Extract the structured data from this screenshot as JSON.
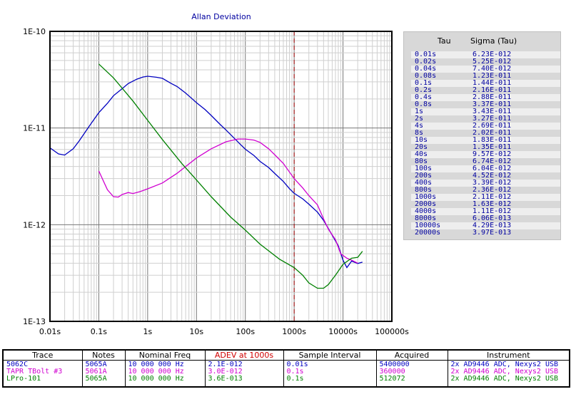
{
  "chart_data": {
    "type": "line",
    "title": "Allan Deviation",
    "x_scale": "log",
    "y_scale": "log",
    "xlim": [
      0.01,
      100000
    ],
    "ylim": [
      1e-13,
      1e-10
    ],
    "x_tick_labels": [
      "0.01s",
      "0.1s",
      "1s",
      "10s",
      "100s",
      "1000s",
      "10000s",
      "100000s"
    ],
    "y_tick_labels": [
      "1E-13",
      "1E-12",
      "1E-11",
      "1E-10"
    ],
    "grid": true,
    "marker_line": {
      "x": 1000,
      "color": "#a00000",
      "style": "dashed"
    },
    "series": [
      {
        "name": "5062C",
        "color": "#0000c0",
        "points": [
          [
            0.01,
            6.23e-12
          ],
          [
            0.015,
            5.4e-12
          ],
          [
            0.02,
            5.25e-12
          ],
          [
            0.03,
            6.1e-12
          ],
          [
            0.04,
            7.4e-12
          ],
          [
            0.06,
            1e-11
          ],
          [
            0.08,
            1.23e-11
          ],
          [
            0.1,
            1.44e-11
          ],
          [
            0.15,
            1.8e-11
          ],
          [
            0.2,
            2.16e-11
          ],
          [
            0.3,
            2.55e-11
          ],
          [
            0.4,
            2.88e-11
          ],
          [
            0.6,
            3.2e-11
          ],
          [
            0.8,
            3.37e-11
          ],
          [
            1,
            3.43e-11
          ],
          [
            1.5,
            3.35e-11
          ],
          [
            2,
            3.27e-11
          ],
          [
            3,
            2.9e-11
          ],
          [
            4,
            2.69e-11
          ],
          [
            6,
            2.3e-11
          ],
          [
            8,
            2.02e-11
          ],
          [
            10,
            1.83e-11
          ],
          [
            15,
            1.55e-11
          ],
          [
            20,
            1.35e-11
          ],
          [
            30,
            1.1e-11
          ],
          [
            40,
            9.57e-12
          ],
          [
            60,
            7.8e-12
          ],
          [
            80,
            6.74e-12
          ],
          [
            100,
            6.04e-12
          ],
          [
            150,
            5.2e-12
          ],
          [
            200,
            4.52e-12
          ],
          [
            300,
            3.9e-12
          ],
          [
            400,
            3.39e-12
          ],
          [
            600,
            2.8e-12
          ],
          [
            800,
            2.36e-12
          ],
          [
            1000,
            2.11e-12
          ],
          [
            1500,
            1.85e-12
          ],
          [
            2000,
            1.63e-12
          ],
          [
            3000,
            1.35e-12
          ],
          [
            4000,
            1.11e-12
          ],
          [
            6000,
            7.8e-13
          ],
          [
            8000,
            6.06e-13
          ],
          [
            10000,
            4.29e-13
          ],
          [
            12000,
            3.6e-13
          ],
          [
            15000,
            4.2e-13
          ],
          [
            20000,
            3.97e-13
          ],
          [
            25000,
            4.1e-13
          ]
        ]
      },
      {
        "name": "TAPR TBolt #3",
        "color": "#d000d0",
        "points": [
          [
            0.1,
            3.6e-12
          ],
          [
            0.15,
            2.3e-12
          ],
          [
            0.2,
            1.95e-12
          ],
          [
            0.25,
            1.93e-12
          ],
          [
            0.3,
            2.05e-12
          ],
          [
            0.4,
            2.15e-12
          ],
          [
            0.5,
            2.1e-12
          ],
          [
            0.7,
            2.2e-12
          ],
          [
            1,
            2.35e-12
          ],
          [
            2,
            2.7e-12
          ],
          [
            4,
            3.4e-12
          ],
          [
            10,
            4.9e-12
          ],
          [
            20,
            6.1e-12
          ],
          [
            40,
            7.2e-12
          ],
          [
            70,
            7.7e-12
          ],
          [
            100,
            7.7e-12
          ],
          [
            150,
            7.5e-12
          ],
          [
            200,
            7.1e-12
          ],
          [
            300,
            6.1e-12
          ],
          [
            400,
            5.3e-12
          ],
          [
            600,
            4.3e-12
          ],
          [
            1000,
            3e-12
          ],
          [
            1500,
            2.4e-12
          ],
          [
            2000,
            2e-12
          ],
          [
            3000,
            1.6e-12
          ],
          [
            4000,
            1.15e-12
          ],
          [
            5000,
            9e-13
          ],
          [
            7000,
            7e-13
          ],
          [
            9000,
            5e-13
          ],
          [
            12000,
            4.5e-13
          ],
          [
            15000,
            4.3e-13
          ],
          [
            20000,
            4e-13
          ]
        ]
      },
      {
        "name": "LPro-101",
        "color": "#008000",
        "points": [
          [
            0.1,
            4.6e-11
          ],
          [
            0.2,
            3.3e-11
          ],
          [
            0.5,
            1.9e-11
          ],
          [
            1,
            1.2e-11
          ],
          [
            2,
            7.6e-12
          ],
          [
            5,
            4.3e-12
          ],
          [
            10,
            2.9e-12
          ],
          [
            20,
            1.95e-12
          ],
          [
            50,
            1.2e-12
          ],
          [
            100,
            8.8e-13
          ],
          [
            200,
            6.3e-13
          ],
          [
            500,
            4.4e-13
          ],
          [
            1000,
            3.6e-13
          ],
          [
            1500,
            3e-13
          ],
          [
            2000,
            2.5e-13
          ],
          [
            3000,
            2.2e-13
          ],
          [
            4000,
            2.2e-13
          ],
          [
            5000,
            2.4e-13
          ],
          [
            7000,
            3e-13
          ],
          [
            10000,
            3.9e-13
          ],
          [
            15000,
            4.5e-13
          ],
          [
            20000,
            4.6e-13
          ],
          [
            25000,
            5.3e-13
          ]
        ]
      }
    ]
  },
  "tau_table": {
    "header_tau": "Tau",
    "header_sigma": "Sigma (Tau)",
    "rows": [
      {
        "tau": "0.01s",
        "sigma": "6.23E-012"
      },
      {
        "tau": "0.02s",
        "sigma": "5.25E-012"
      },
      {
        "tau": "0.04s",
        "sigma": "7.40E-012"
      },
      {
        "tau": "0.08s",
        "sigma": "1.23E-011"
      },
      {
        "tau": "0.1s",
        "sigma": "1.44E-011"
      },
      {
        "tau": "0.2s",
        "sigma": "2.16E-011"
      },
      {
        "tau": "0.4s",
        "sigma": "2.88E-011"
      },
      {
        "tau": "0.8s",
        "sigma": "3.37E-011"
      },
      {
        "tau": "1s",
        "sigma": "3.43E-011"
      },
      {
        "tau": "2s",
        "sigma": "3.27E-011"
      },
      {
        "tau": "4s",
        "sigma": "2.69E-011"
      },
      {
        "tau": "8s",
        "sigma": "2.02E-011"
      },
      {
        "tau": "10s",
        "sigma": "1.83E-011"
      },
      {
        "tau": "20s",
        "sigma": "1.35E-011"
      },
      {
        "tau": "40s",
        "sigma": "9.57E-012"
      },
      {
        "tau": "80s",
        "sigma": "6.74E-012"
      },
      {
        "tau": "100s",
        "sigma": "6.04E-012"
      },
      {
        "tau": "200s",
        "sigma": "4.52E-012"
      },
      {
        "tau": "400s",
        "sigma": "3.39E-012"
      },
      {
        "tau": "800s",
        "sigma": "2.36E-012"
      },
      {
        "tau": "1000s",
        "sigma": "2.11E-012"
      },
      {
        "tau": "2000s",
        "sigma": "1.63E-012"
      },
      {
        "tau": "4000s",
        "sigma": "1.11E-012"
      },
      {
        "tau": "8000s",
        "sigma": "6.06E-013"
      },
      {
        "tau": "10000s",
        "sigma": "4.29E-013"
      },
      {
        "tau": "20000s",
        "sigma": "3.97E-013"
      }
    ]
  },
  "legend": {
    "headers": {
      "trace": "Trace",
      "notes": "Notes",
      "freq": "Nominal Freq",
      "adev": "ADEV at 1000s",
      "interval": "Sample Interval",
      "acquired": "Acquired",
      "instrument": "Instrument"
    },
    "adev_header_color": "#d00000",
    "rows": [
      {
        "trace": "5062C",
        "notes": "5065A",
        "freq": "10 000 000 Hz",
        "adev": "2.1E-012",
        "interval": "0.01s",
        "acquired": "5400000",
        "instrument": "2x AD9446 ADC, Nexys2 USB",
        "color": "#0000c0"
      },
      {
        "trace": "TAPR TBolt #3",
        "notes": "5061A",
        "freq": "10 000 000 Hz",
        "adev": "3.0E-012",
        "interval": "0.1s",
        "acquired": "360000",
        "instrument": "2x AD9446 ADC, Nexys2 USB",
        "color": "#d000d0"
      },
      {
        "trace": "LPro-101",
        "notes": "5065A",
        "freq": "10 000 000 Hz",
        "adev": "3.6E-013",
        "interval": "0.1s",
        "acquired": "512072",
        "instrument": "2x AD9446 ADC, Nexys2 USB",
        "color": "#008000"
      }
    ]
  }
}
